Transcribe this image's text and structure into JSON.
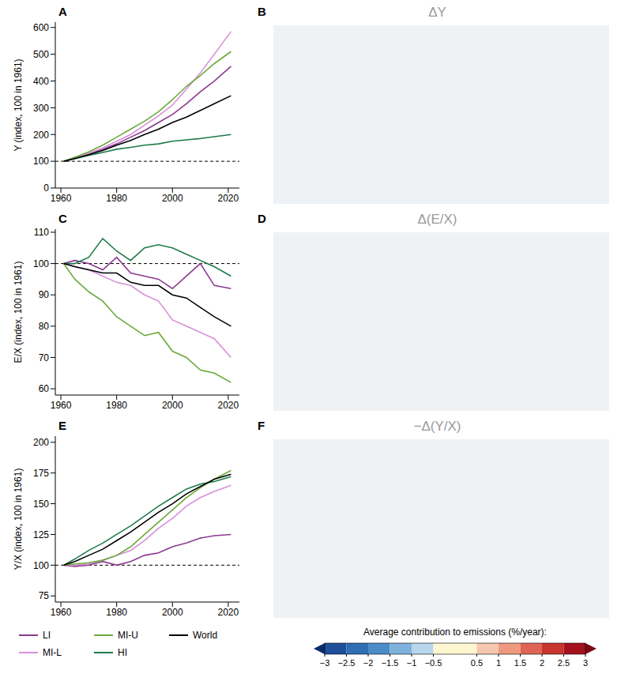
{
  "chart_data": [
    {
      "type": "line",
      "panel": "A",
      "ylabel": "Y (index, 100 in 1961)",
      "x": [
        1961,
        1965,
        1970,
        1975,
        1980,
        1985,
        1990,
        1995,
        2000,
        2005,
        2010,
        2015,
        2021
      ],
      "xlim": [
        1958,
        2024
      ],
      "xticks": [
        1960,
        1980,
        2000,
        2020
      ],
      "ylim": [
        0,
        620
      ],
      "yticks": [
        0,
        100,
        200,
        300,
        400,
        500,
        600
      ],
      "baseline": 100,
      "series": [
        {
          "name": "LI",
          "color": "#8b3a8f",
          "values": [
            100,
            112,
            128,
            145,
            165,
            190,
            215,
            245,
            275,
            315,
            360,
            400,
            455
          ]
        },
        {
          "name": "MI-L",
          "color": "#d98fd9",
          "values": [
            100,
            113,
            130,
            150,
            175,
            200,
            235,
            270,
            310,
            370,
            430,
            500,
            585
          ]
        },
        {
          "name": "MI-U",
          "color": "#6aaa3a",
          "values": [
            100,
            115,
            135,
            160,
            190,
            220,
            250,
            285,
            330,
            380,
            420,
            465,
            510
          ]
        },
        {
          "name": "HI",
          "color": "#1e7b4a",
          "values": [
            100,
            110,
            122,
            133,
            145,
            152,
            160,
            165,
            175,
            180,
            185,
            192,
            200
          ]
        },
        {
          "name": "World",
          "color": "#000000",
          "values": [
            100,
            110,
            125,
            140,
            160,
            178,
            200,
            220,
            245,
            265,
            290,
            315,
            345
          ]
        }
      ]
    },
    {
      "type": "line",
      "panel": "C",
      "ylabel": "E/X (index, 100 in 1961)",
      "x": [
        1961,
        1965,
        1970,
        1975,
        1980,
        1985,
        1990,
        1995,
        2000,
        2005,
        2010,
        2015,
        2021
      ],
      "xlim": [
        1958,
        2024
      ],
      "xticks": [
        1960,
        1980,
        2000,
        2020
      ],
      "ylim": [
        58,
        111
      ],
      "yticks": [
        60,
        70,
        80,
        90,
        100,
        110
      ],
      "baseline": 100,
      "series": [
        {
          "name": "LI",
          "color": "#8b3a8f",
          "values": [
            100,
            101,
            100,
            98,
            102,
            97,
            96,
            95,
            92,
            96,
            100,
            93,
            92
          ]
        },
        {
          "name": "MI-L",
          "color": "#d98fd9",
          "values": [
            100,
            99,
            98,
            96,
            94,
            93,
            90,
            88,
            82,
            80,
            78,
            76,
            70
          ]
        },
        {
          "name": "MI-U",
          "color": "#6aaa3a",
          "values": [
            100,
            95,
            91,
            88,
            83,
            80,
            77,
            78,
            72,
            70,
            66,
            65,
            62
          ]
        },
        {
          "name": "HI",
          "color": "#1e7b4a",
          "values": [
            100,
            100,
            102,
            108,
            104,
            101,
            105,
            106,
            105,
            103,
            101,
            99,
            96
          ]
        },
        {
          "name": "World",
          "color": "#000000",
          "values": [
            100,
            99,
            98,
            97,
            97,
            94,
            93,
            93,
            90,
            89,
            86,
            83,
            80
          ]
        }
      ]
    },
    {
      "type": "line",
      "panel": "E",
      "ylabel": "Y/X (index, 100 in 1961)",
      "x": [
        1961,
        1965,
        1970,
        1975,
        1980,
        1985,
        1990,
        1995,
        2000,
        2005,
        2010,
        2015,
        2021
      ],
      "xlim": [
        1958,
        2024
      ],
      "xticks": [
        1960,
        1980,
        2000,
        2020
      ],
      "ylim": [
        70,
        205
      ],
      "yticks": [
        75,
        100,
        125,
        150,
        175,
        200
      ],
      "baseline": 100,
      "series": [
        {
          "name": "LI",
          "color": "#8b3a8f",
          "values": [
            100,
            99,
            100,
            103,
            100,
            103,
            108,
            110,
            115,
            118,
            122,
            124,
            125
          ]
        },
        {
          "name": "MI-L",
          "color": "#d98fd9",
          "values": [
            100,
            100,
            101,
            104,
            108,
            112,
            120,
            130,
            138,
            148,
            155,
            160,
            165
          ]
        },
        {
          "name": "MI-U",
          "color": "#6aaa3a",
          "values": [
            100,
            101,
            102,
            104,
            108,
            115,
            125,
            135,
            145,
            155,
            163,
            170,
            177
          ]
        },
        {
          "name": "HI",
          "color": "#1e7b4a",
          "values": [
            100,
            105,
            112,
            118,
            125,
            132,
            140,
            148,
            155,
            162,
            166,
            168,
            172
          ]
        },
        {
          "name": "World",
          "color": "#000000",
          "values": [
            100,
            103,
            108,
            113,
            120,
            127,
            135,
            143,
            150,
            158,
            164,
            170,
            174
          ]
        }
      ]
    },
    {
      "type": "map",
      "panel": "B",
      "title": "ΔY"
    },
    {
      "type": "map",
      "panel": "D",
      "title": "Δ(E/X)"
    },
    {
      "type": "map",
      "panel": "F",
      "title": "−Δ(Y/X)"
    }
  ],
  "colorbar": {
    "title": "Average contribution to emissions (%/year):",
    "range": [
      -3,
      3
    ],
    "bins": [
      -3,
      -2.5,
      -2,
      -1.5,
      -1,
      -0.5,
      0.5,
      1,
      1.5,
      2,
      2.5,
      3
    ],
    "colors": [
      "#1f4e9a",
      "#2f6db5",
      "#4a8cc8",
      "#7fb2dc",
      "#b7d6ec",
      "#fdf6cf",
      "#f6c7b0",
      "#ee9a80",
      "#de6553",
      "#c8342e",
      "#a5101f"
    ],
    "under_color": "#0b2a6b",
    "over_color": "#7a0a16",
    "ticks": [
      {
        "value": -3,
        "label": "−3"
      },
      {
        "value": -2.5,
        "label": "−2.5"
      },
      {
        "value": -2,
        "label": "−2"
      },
      {
        "value": -1.5,
        "label": "−1.5"
      },
      {
        "value": -1,
        "label": "−1"
      },
      {
        "value": -0.5,
        "label": "−0.5"
      },
      0.5,
      1,
      1.5,
      2,
      2.5,
      3
    ]
  }
}
